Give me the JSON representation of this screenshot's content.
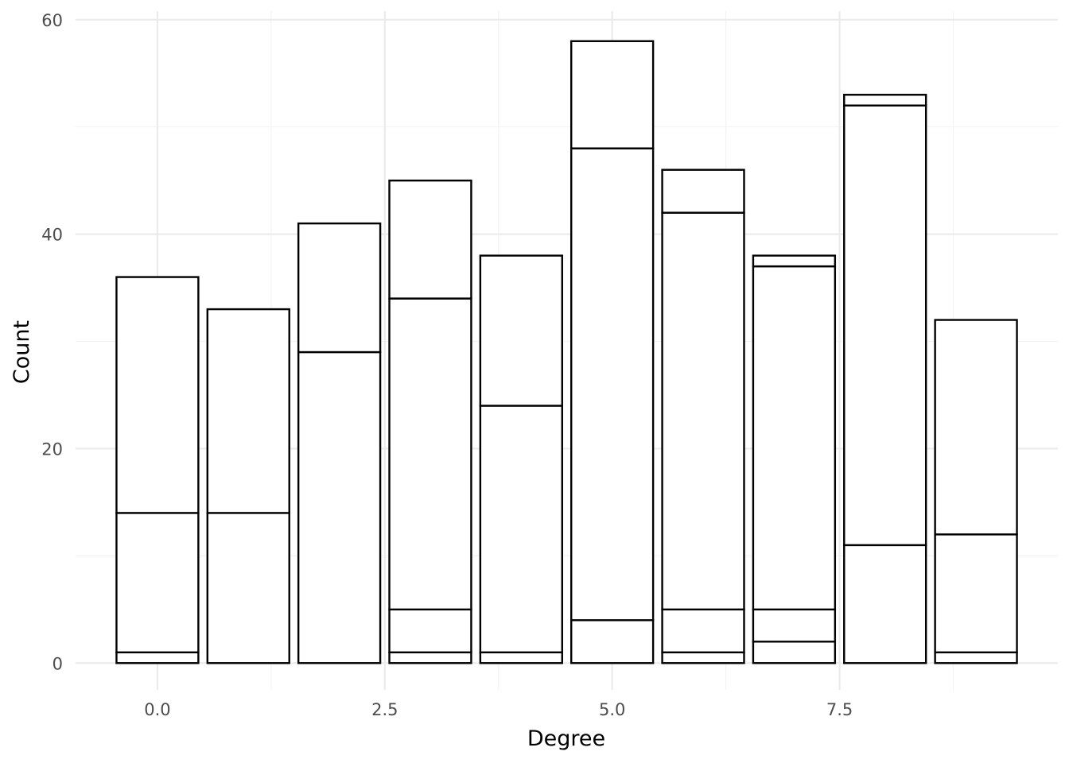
{
  "chart_data": {
    "type": "bar",
    "stacked": true,
    "xlabel": "Degree",
    "ylabel": "Count",
    "xlim": [
      -0.9,
      9.9
    ],
    "ylim": [
      -2.5,
      60.8
    ],
    "x_ticks": [
      0.0,
      2.5,
      5.0,
      7.5
    ],
    "x_tick_labels": [
      "0.0",
      "2.5",
      "5.0",
      "7.5"
    ],
    "y_ticks": [
      0,
      20,
      40,
      60
    ],
    "y_tick_labels": [
      "0",
      "20",
      "40",
      "60"
    ],
    "grid": true,
    "legend": "none",
    "bar_width": 0.9,
    "x": [
      0,
      1,
      2,
      3,
      4,
      5,
      6,
      7,
      8,
      9
    ],
    "segments": [
      [
        1,
        13,
        22
      ],
      [
        14,
        19
      ],
      [
        29,
        12
      ],
      [
        1,
        4,
        29,
        11
      ],
      [
        1,
        23,
        14
      ],
      [
        4,
        44,
        10
      ],
      [
        1,
        4,
        37,
        4
      ],
      [
        2,
        3,
        32,
        1
      ],
      [
        11,
        41,
        1
      ],
      [
        1,
        11,
        20
      ]
    ],
    "totals": [
      36,
      33,
      41,
      45,
      38,
      58,
      46,
      38,
      53,
      32
    ]
  }
}
